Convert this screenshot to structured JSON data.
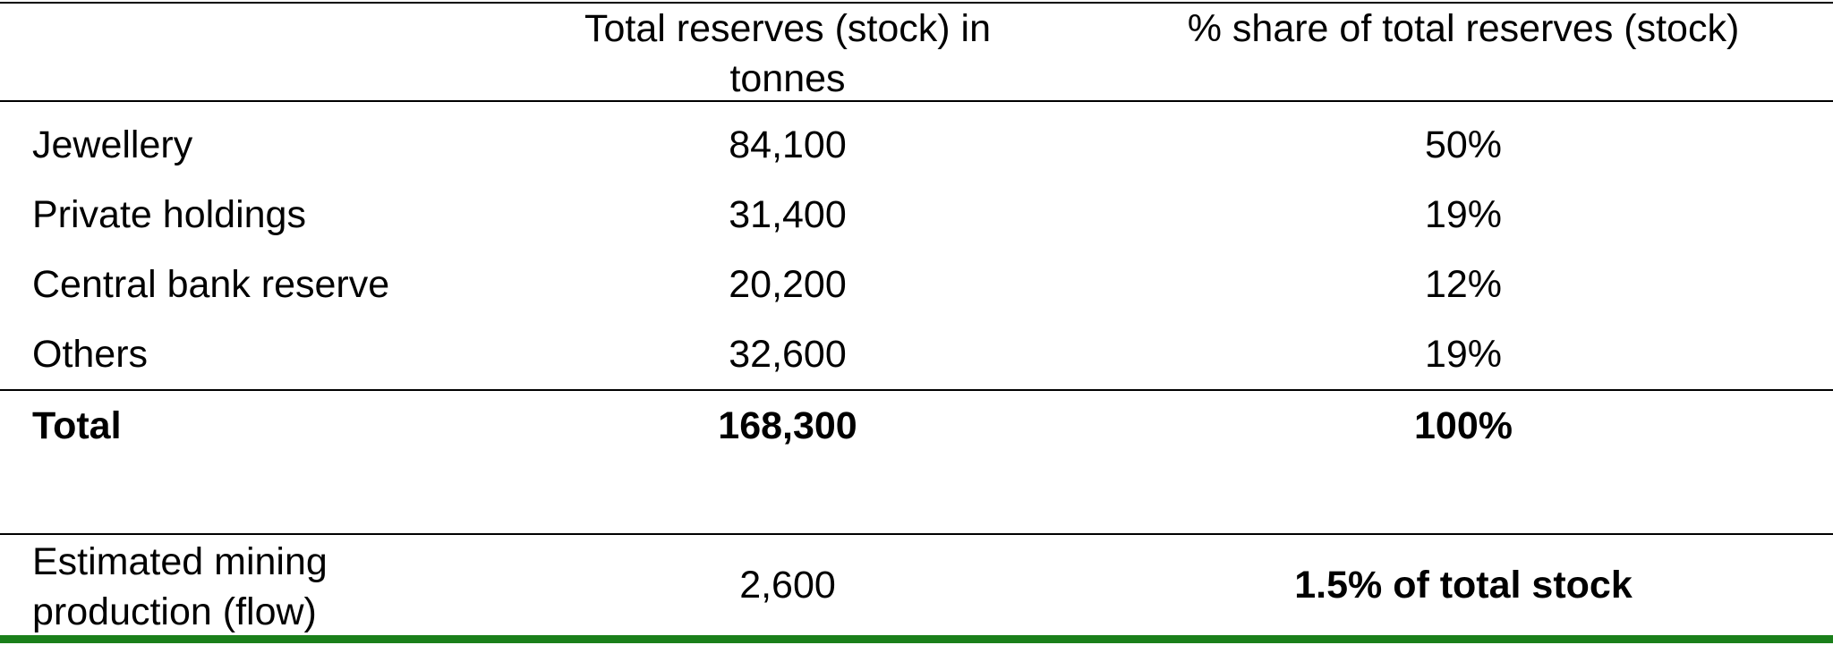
{
  "table": {
    "header": {
      "col1": "Total reserves (stock) in tonnes",
      "col2": "% share of total reserves (stock)"
    },
    "rows": [
      {
        "label": "Jewellery",
        "tonnes": "84,100",
        "share": "50%"
      },
      {
        "label": "Private holdings",
        "tonnes": "31,400",
        "share": "19%"
      },
      {
        "label": "Central bank reserve",
        "tonnes": "20,200",
        "share": "12%"
      },
      {
        "label": "Others",
        "tonnes": "32,600",
        "share": "19%"
      }
    ],
    "total": {
      "label": "Total",
      "tonnes": "168,300",
      "share": "100%"
    },
    "mining": {
      "label": "Estimated mining production (flow)",
      "tonnes": "2,600",
      "share": "1.5% of total stock"
    }
  },
  "colors": {
    "rule": "#000000",
    "accent_bar": "#1a7f1a"
  }
}
